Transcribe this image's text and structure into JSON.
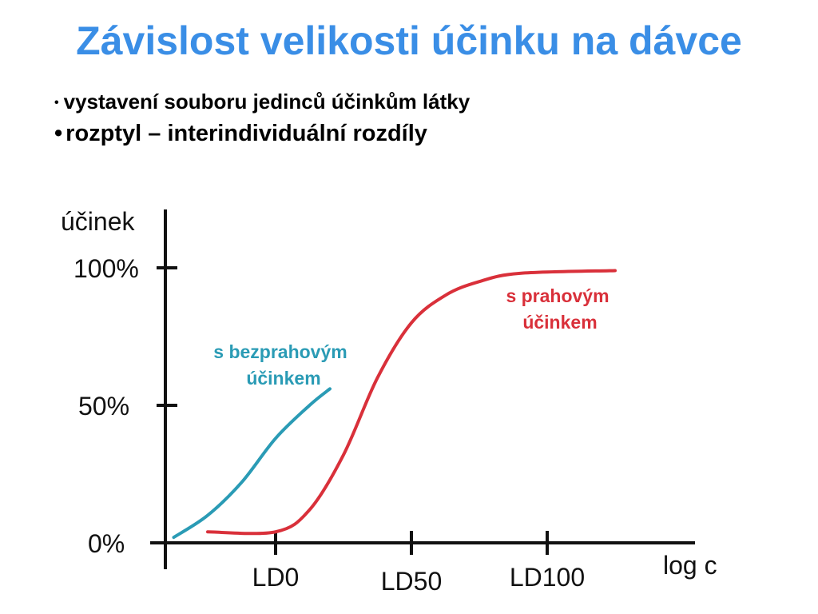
{
  "title": "Závislost velikosti účinku na dávce",
  "bullets": [
    "vystavení souboru jedinců účinkům látky",
    "rozptyl – interindividuální rozdíly"
  ],
  "colors": {
    "title": "#3a8ee6",
    "axis": "#111111",
    "threshold_series": "#d9303a",
    "non_threshold_series": "#2a9bb5"
  },
  "chart_data": {
    "type": "line",
    "xlabel": "log c",
    "ylabel": "účinek",
    "x_ticks": [
      "LD0",
      "LD50",
      "LD100"
    ],
    "y_ticks": [
      "0%",
      "50%",
      "100%"
    ],
    "ylim": [
      0,
      100
    ],
    "series": [
      {
        "name_lines": [
          "s bezprahovým",
          "účinkem"
        ],
        "color": "#2a9bb5",
        "x": [
          -0.75,
          -0.5,
          -0.25,
          0.0,
          0.25,
          0.4
        ],
        "y": [
          2,
          10,
          22,
          38,
          50,
          56
        ]
      },
      {
        "name_lines": [
          "s prahovým",
          "účinkem"
        ],
        "color": "#d9303a",
        "x": [
          -0.5,
          0.0,
          0.25,
          0.5,
          0.75,
          1.0,
          1.25,
          1.5,
          1.8,
          2.5
        ],
        "y": [
          4,
          4,
          12,
          32,
          60,
          80,
          90,
          95,
          98,
          99
        ]
      }
    ]
  }
}
